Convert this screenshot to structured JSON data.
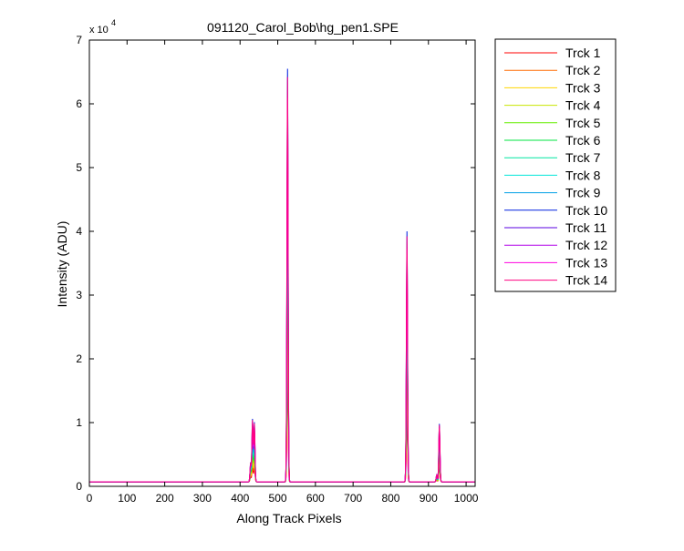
{
  "window": {
    "background": "#ffffff"
  },
  "chart_data": {
    "type": "line",
    "title": "091120_Carol_Bob\\hg_pen1.SPE",
    "xlabel": "Along Track Pixels",
    "ylabel": "Intensity (ADU)",
    "xlim": [
      0,
      1024
    ],
    "ylim": [
      0,
      70000
    ],
    "x_ticks": [
      0,
      100,
      200,
      300,
      400,
      500,
      600,
      700,
      800,
      900,
      1000
    ],
    "y_ticks": [
      0,
      1,
      2,
      3,
      4,
      5,
      6,
      7
    ],
    "y_multiplier": "x 10",
    "y_multiplier_exp": "4",
    "grid": false,
    "legend_position": "outside-right",
    "baseline": 700,
    "peaks": [
      {
        "x": 428,
        "y": 3700
      },
      {
        "x": 433,
        "y": 10500
      },
      {
        "x": 438,
        "y": 10000
      },
      {
        "x": 526,
        "y": 65500
      },
      {
        "x": 843,
        "y": 40000
      },
      {
        "x": 922,
        "y": 1800
      },
      {
        "x": 929,
        "y": 9800
      }
    ],
    "series": [
      {
        "name": "Trck 1",
        "color": "#ff0000",
        "scale": 0.23
      },
      {
        "name": "Trck 2",
        "color": "#ff6a00",
        "scale": 0.3
      },
      {
        "name": "Trck 3",
        "color": "#ffd400",
        "scale": 0.37
      },
      {
        "name": "Trck 4",
        "color": "#c8e600",
        "scale": 0.44
      },
      {
        "name": "Trck 5",
        "color": "#66ee00",
        "scale": 0.51
      },
      {
        "name": "Trck 6",
        "color": "#00e640",
        "scale": 0.58
      },
      {
        "name": "Trck 7",
        "color": "#00e6a0",
        "scale": 0.65
      },
      {
        "name": "Trck 8",
        "color": "#00e6d8",
        "scale": 0.72
      },
      {
        "name": "Trck 9",
        "color": "#00a0e6",
        "scale": 0.79
      },
      {
        "name": "Trck 10",
        "color": "#0020e0",
        "scale": 1.0
      },
      {
        "name": "Trck 11",
        "color": "#5a00e0",
        "scale": 0.9
      },
      {
        "name": "Trck 12",
        "color": "#b000e8",
        "scale": 0.86
      },
      {
        "name": "Trck 13",
        "color": "#ff00e0",
        "scale": 0.93
      },
      {
        "name": "Trck 14",
        "color": "#ff0080",
        "scale": 0.98
      }
    ]
  }
}
